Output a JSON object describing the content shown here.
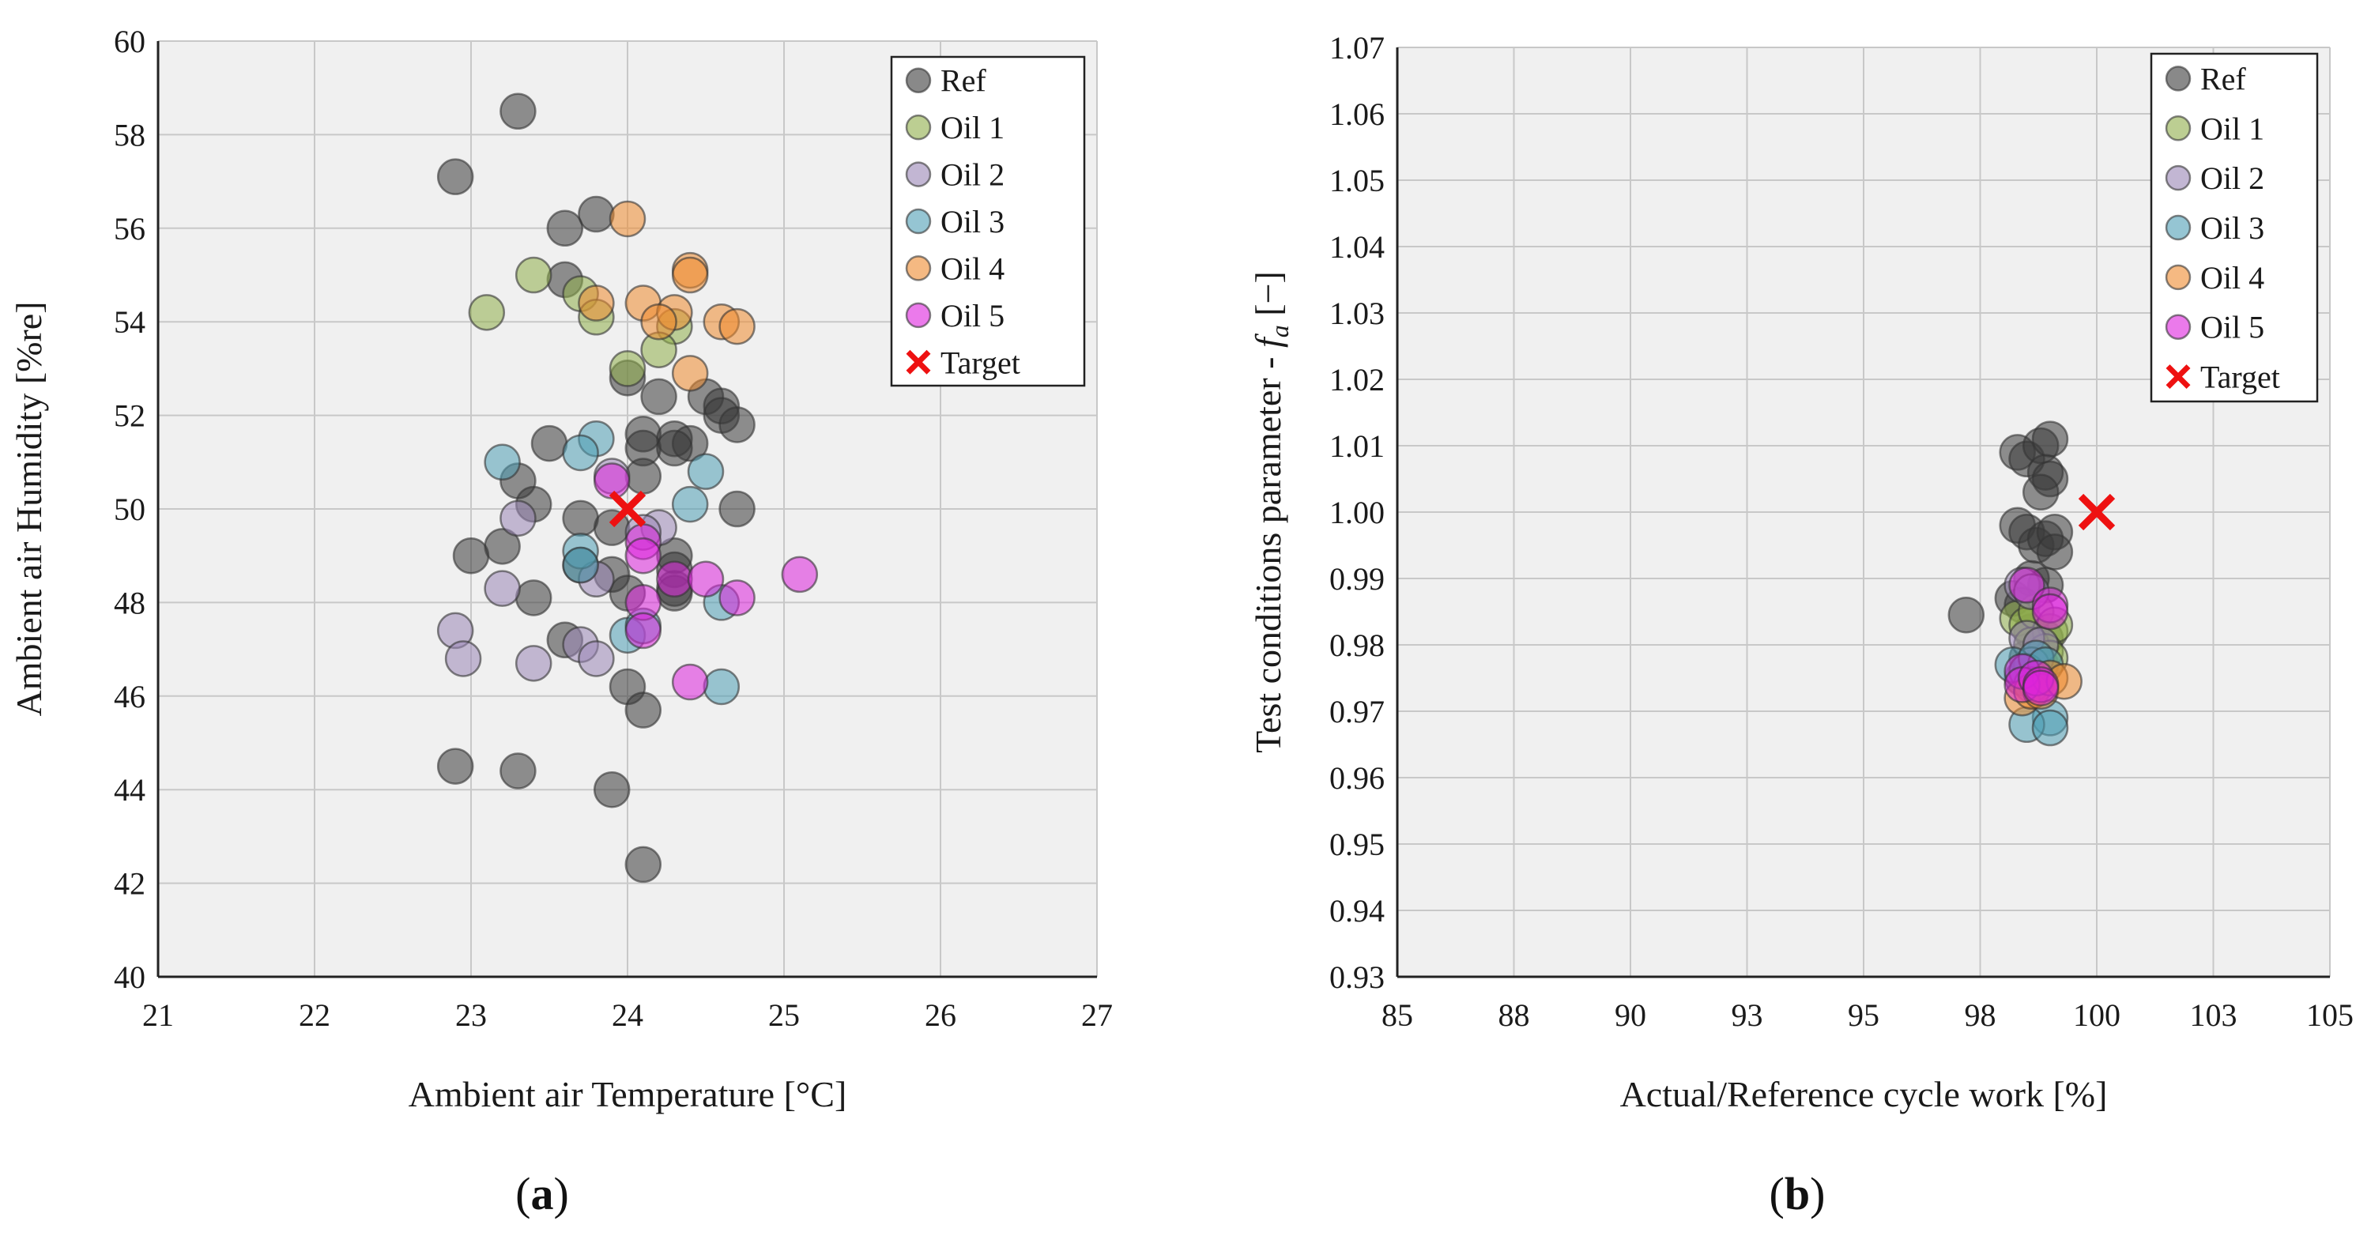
{
  "colors": {
    "Ref": "#3a3a3a",
    "Oil 1": "#8fae4a",
    "Oil 2": "#9a86b6",
    "Oil 3": "#4e9fb5",
    "Oil 4": "#ee8a2e",
    "Oil 5": "#dd22dd",
    "Target": "#ee1111",
    "plot_bg": "#f0f0f0",
    "grid": "#c8c8c8"
  },
  "captions": {
    "a": "a",
    "b": "b"
  },
  "chart_data": [
    {
      "id": "a",
      "type": "scatter",
      "xlabel": "Ambient air Temperature [°C]",
      "ylabel": "Ambient air Humidity [%re]",
      "xlim": [
        21,
        27
      ],
      "ylim": [
        40,
        60
      ],
      "xticks": [
        21,
        22,
        23,
        24,
        25,
        26,
        27
      ],
      "yticks": [
        40,
        42,
        44,
        46,
        48,
        50,
        52,
        54,
        56,
        58,
        60
      ],
      "xtick_labels": [
        "21",
        "22",
        "23",
        "24",
        "25",
        "26",
        "27"
      ],
      "ytick_labels": [
        "40",
        "42",
        "44",
        "46",
        "48",
        "50",
        "52",
        "54",
        "56",
        "58",
        "60"
      ],
      "legend": [
        "Ref",
        "Oil 1",
        "Oil 2",
        "Oil 3",
        "Oil 4",
        "Oil 5",
        "Target"
      ],
      "legend_position": "top-right",
      "series": [
        {
          "name": "Ref",
          "points": [
            [
              23.3,
              58.5
            ],
            [
              22.9,
              57.1
            ],
            [
              23.8,
              56.3
            ],
            [
              23.6,
              56.0
            ],
            [
              23.6,
              54.9
            ],
            [
              24.0,
              52.8
            ],
            [
              24.2,
              52.4
            ],
            [
              24.5,
              52.4
            ],
            [
              24.6,
              52.2
            ],
            [
              24.6,
              52.0
            ],
            [
              24.7,
              51.8
            ],
            [
              24.1,
              51.6
            ],
            [
              24.3,
              51.5
            ],
            [
              24.4,
              51.4
            ],
            [
              24.1,
              51.3
            ],
            [
              23.5,
              51.4
            ],
            [
              24.3,
              51.3
            ],
            [
              23.3,
              50.6
            ],
            [
              24.1,
              50.7
            ],
            [
              23.4,
              50.1
            ],
            [
              24.7,
              50.0
            ],
            [
              23.7,
              49.8
            ],
            [
              23.9,
              49.6
            ],
            [
              23.2,
              49.2
            ],
            [
              23.0,
              49.0
            ],
            [
              24.3,
              49.0
            ],
            [
              23.7,
              48.8
            ],
            [
              24.3,
              48.7
            ],
            [
              23.9,
              48.6
            ],
            [
              24.3,
              48.3
            ],
            [
              23.4,
              48.1
            ],
            [
              24.0,
              48.2
            ],
            [
              24.3,
              48.2
            ],
            [
              23.6,
              47.2
            ],
            [
              24.0,
              46.2
            ],
            [
              24.1,
              45.7
            ],
            [
              22.9,
              44.5
            ],
            [
              23.3,
              44.4
            ],
            [
              23.9,
              44.0
            ],
            [
              24.1,
              42.4
            ]
          ]
        },
        {
          "name": "Oil 1",
          "points": [
            [
              23.4,
              55.0
            ],
            [
              23.7,
              54.6
            ],
            [
              23.8,
              54.1
            ],
            [
              23.1,
              54.2
            ],
            [
              24.3,
              53.9
            ],
            [
              24.2,
              53.4
            ],
            [
              24.0,
              53.0
            ]
          ]
        },
        {
          "name": "Oil 2",
          "points": [
            [
              23.9,
              50.7
            ],
            [
              24.2,
              49.6
            ],
            [
              23.3,
              49.8
            ],
            [
              24.1,
              49.5
            ],
            [
              23.8,
              48.5
            ],
            [
              23.2,
              48.3
            ],
            [
              22.9,
              47.4
            ],
            [
              23.7,
              47.1
            ],
            [
              22.95,
              46.8
            ],
            [
              23.4,
              46.7
            ],
            [
              23.8,
              46.8
            ]
          ]
        },
        {
          "name": "Oil 3",
          "points": [
            [
              23.2,
              51.0
            ],
            [
              23.8,
              51.5
            ],
            [
              23.7,
              51.2
            ],
            [
              24.5,
              50.8
            ],
            [
              24.4,
              50.1
            ],
            [
              23.7,
              49.1
            ],
            [
              23.7,
              48.8
            ],
            [
              24.6,
              48.0
            ],
            [
              24.0,
              47.3
            ],
            [
              24.1,
              47.5
            ],
            [
              24.6,
              46.2
            ]
          ]
        },
        {
          "name": "Oil 4",
          "points": [
            [
              24.0,
              56.2
            ],
            [
              24.4,
              55.1
            ],
            [
              24.4,
              55.0
            ],
            [
              23.8,
              54.4
            ],
            [
              24.1,
              54.4
            ],
            [
              24.3,
              54.2
            ],
            [
              24.6,
              54.0
            ],
            [
              24.7,
              53.9
            ],
            [
              24.2,
              54.0
            ],
            [
              24.4,
              52.9
            ]
          ]
        },
        {
          "name": "Oil 5",
          "points": [
            [
              23.9,
              50.6
            ],
            [
              24.1,
              49.3
            ],
            [
              24.1,
              49.0
            ],
            [
              24.3,
              48.5
            ],
            [
              24.5,
              48.5
            ],
            [
              24.7,
              48.1
            ],
            [
              24.1,
              48.0
            ],
            [
              24.1,
              47.4
            ],
            [
              25.1,
              48.6
            ],
            [
              24.4,
              46.3
            ]
          ]
        }
      ],
      "target": [
        24.0,
        50.0
      ]
    },
    {
      "id": "b",
      "type": "scatter",
      "xlabel": "Actual/Reference cycle work [%]",
      "ylabel_prefix": "Test conditions parameter - ",
      "ylabel_var": "f",
      "ylabel_sub": "a",
      "ylabel_suffix": " [−]",
      "xlim": [
        85,
        105
      ],
      "ylim": [
        0.93,
        1.07
      ],
      "xticks": [
        85,
        87.5,
        90,
        92.5,
        95,
        97.5,
        100,
        102.5,
        105
      ],
      "yticks": [
        0.93,
        0.94,
        0.95,
        0.96,
        0.97,
        0.98,
        0.99,
        1.0,
        1.01,
        1.02,
        1.03,
        1.04,
        1.05,
        1.06,
        1.07
      ],
      "xtick_labels": [
        "85",
        "88",
        "90",
        "93",
        "95",
        "98",
        "100",
        "103",
        "105"
      ],
      "ytick_labels": [
        "0.93",
        "0.94",
        "0.95",
        "0.96",
        "0.97",
        "0.98",
        "0.99",
        "1.00",
        "1.01",
        "1.02",
        "1.03",
        "1.04",
        "1.05",
        "1.06",
        "1.07"
      ],
      "legend": [
        "Ref",
        "Oil 1",
        "Oil 2",
        "Oil 3",
        "Oil 4",
        "Oil 5",
        "Target"
      ],
      "legend_position": "top-right",
      "series": [
        {
          "name": "Ref",
          "points": [
            [
              98.3,
              1.009
            ],
            [
              98.5,
              1.008
            ],
            [
              98.8,
              1.01
            ],
            [
              99.0,
              1.011
            ],
            [
              98.9,
              1.006
            ],
            [
              99.0,
              1.005
            ],
            [
              98.8,
              1.003
            ],
            [
              98.3,
              0.998
            ],
            [
              98.5,
              0.997
            ],
            [
              98.7,
              0.995
            ],
            [
              98.9,
              0.996
            ],
            [
              99.1,
              0.997
            ],
            [
              99.1,
              0.994
            ],
            [
              98.6,
              0.99
            ],
            [
              98.9,
              0.989
            ],
            [
              98.2,
              0.987
            ],
            [
              98.4,
              0.986
            ],
            [
              97.2,
              0.9845
            ],
            [
              98.6,
              0.982
            ],
            [
              98.9,
              0.981
            ],
            [
              98.5,
              0.978
            ],
            [
              98.8,
              0.977
            ],
            [
              98.4,
              0.975
            ],
            [
              98.7,
              0.974
            ]
          ]
        },
        {
          "name": "Oil 1",
          "points": [
            [
              98.3,
              0.984
            ],
            [
              98.5,
              0.983
            ],
            [
              98.7,
              0.985
            ],
            [
              99.0,
              0.982
            ],
            [
              99.1,
              0.983
            ],
            [
              98.6,
              0.98
            ],
            [
              98.9,
              0.979
            ],
            [
              99.0,
              0.978
            ]
          ]
        },
        {
          "name": "Oil 2",
          "points": [
            [
              98.4,
              0.989
            ],
            [
              98.6,
              0.988
            ],
            [
              98.5,
              0.981
            ],
            [
              98.8,
              0.98
            ],
            [
              98.6,
              0.977
            ]
          ]
        },
        {
          "name": "Oil 3",
          "points": [
            [
              98.2,
              0.977
            ],
            [
              98.5,
              0.976
            ],
            [
              98.7,
              0.978
            ],
            [
              98.9,
              0.977
            ],
            [
              98.6,
              0.974
            ],
            [
              99.0,
              0.969
            ],
            [
              98.5,
              0.968
            ],
            [
              99.0,
              0.9675
            ]
          ]
        },
        {
          "name": "Oil 4",
          "points": [
            [
              98.4,
              0.972
            ],
            [
              98.6,
              0.973
            ],
            [
              98.8,
              0.973
            ],
            [
              99.0,
              0.975
            ],
            [
              99.3,
              0.9745
            ]
          ]
        },
        {
          "name": "Oil 5",
          "points": [
            [
              98.4,
              0.976
            ],
            [
              98.4,
              0.974
            ],
            [
              98.7,
              0.975
            ],
            [
              98.8,
              0.974
            ],
            [
              98.5,
              0.989
            ],
            [
              99.0,
              0.986
            ],
            [
              99.0,
              0.985
            ],
            [
              98.8,
              0.9735
            ]
          ]
        }
      ],
      "target": [
        100.0,
        1.0
      ]
    }
  ]
}
